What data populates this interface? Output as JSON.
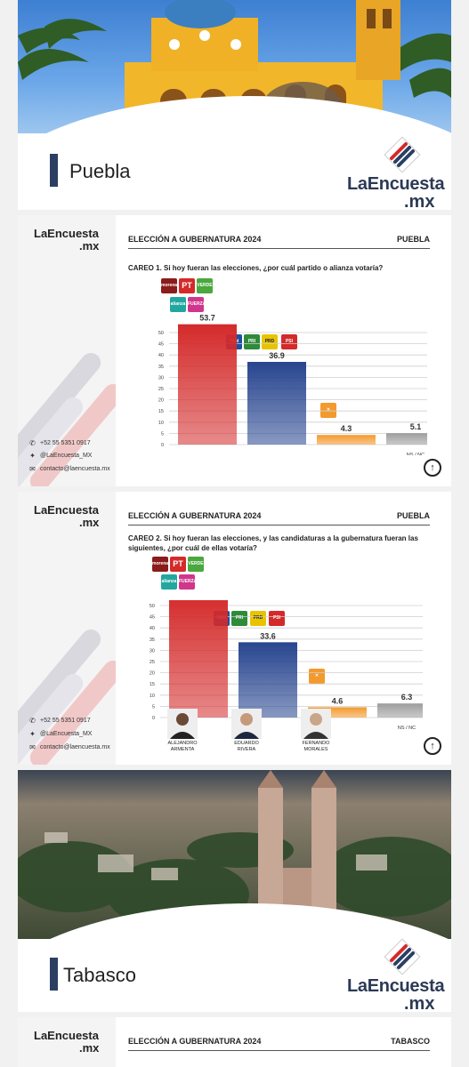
{
  "brand": {
    "name": "LaEncuesta",
    "suffix": ".mx"
  },
  "covers": [
    {
      "region": "Puebla"
    },
    {
      "region": "Tabasco"
    }
  ],
  "contact": {
    "phone": "+52 55 5351 0917",
    "twitter": "@LaEncuesta_MX",
    "email": "contacto@laencuesta.mx"
  },
  "slides": [
    {
      "heading": "ELECCIÓN A GUBERNATURA 2024",
      "state": "PUEBLA",
      "question": "CAREO 1. Si hoy fueran las elecciones, ¿por cuál partido o alianza votaría?",
      "chart_data": {
        "type": "bar",
        "categories": [
          "morena-pt-verde-nueva-alianza-fuerza",
          "pan-pri-prd-psi",
          "mc",
          "NS / NC"
        ],
        "values": [
          53.7,
          36.9,
          4.3,
          5.1
        ],
        "value_labels": [
          "53.7",
          "36.9",
          "4.3",
          "5.1"
        ],
        "ylim": [
          0,
          50
        ],
        "yticks": [
          0,
          5,
          10,
          15,
          20,
          25,
          30,
          35,
          40,
          45,
          50
        ],
        "colors": [
          "#d42a2a",
          "#27458f",
          "#f39a2e",
          "#9e9e9e"
        ],
        "x_label_last": "NS / NC"
      }
    },
    {
      "heading": "ELECCIÓN A GUBERNATURA 2024",
      "state": "PUEBLA",
      "question": "CAREO 2. Si hoy fueran las elecciones, y las candidaturas a la gubernatura fueran las siguientes, ¿por cuál de ellas votaría?",
      "chart_data": {
        "type": "bar",
        "categories": [
          "ALEJANDRO ARMENTA",
          "EDUARDO RIVERA",
          "FERNANDO MORALES",
          "NS / NC"
        ],
        "values": [
          55.5,
          33.6,
          4.6,
          6.3
        ],
        "value_labels": [
          "55.5",
          "33.6",
          "4.6",
          "6.3"
        ],
        "ylim": [
          0,
          50
        ],
        "yticks": [
          0,
          5,
          10,
          15,
          20,
          25,
          30,
          35,
          40,
          45,
          50
        ],
        "colors": [
          "#d42a2a",
          "#27458f",
          "#f39a2e",
          "#9e9e9e"
        ],
        "candidates": [
          {
            "line1": "ALEJANDRO",
            "line2": "ARMENTA"
          },
          {
            "line1": "EDUARDO",
            "line2": "RIVERA"
          },
          {
            "line1": "FERNANDO",
            "line2": "MORALES"
          }
        ],
        "x_label_last": "NS / NC"
      }
    },
    {
      "heading": "ELECCIÓN A GUBERNATURA 2024",
      "state": "TABASCO"
    }
  ],
  "parties": {
    "morena": "morena",
    "pt": "PT",
    "verde": "VERDE",
    "nueva_alianza": "alianza",
    "fuerza": "FUERZA",
    "pan": "PAN",
    "pri": "PRI",
    "prd": "PRD",
    "psi": "PSI"
  },
  "icons": {
    "up": "arrow-up-circle-icon",
    "phone": "whatsapp-icon",
    "twitter": "twitter-icon",
    "email": "mail-icon",
    "mc": "mc-eagle-icon",
    "brand": "brand-stripes-icon"
  },
  "up_glyph": "↑"
}
